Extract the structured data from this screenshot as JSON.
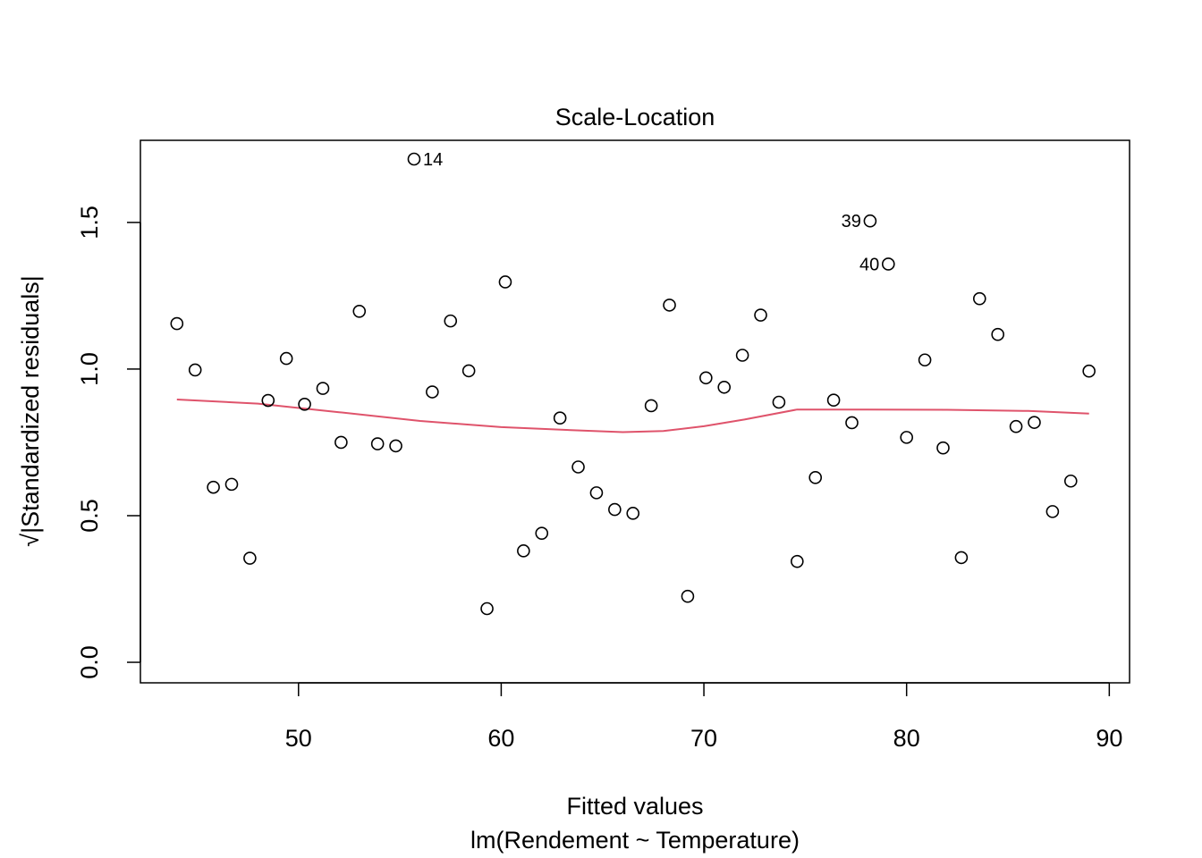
{
  "chart_data": {
    "type": "scatter",
    "title": "Scale-Location",
    "xlabel": "Fitted values",
    "sublabel": "lm(Rendement ~ Temperature)",
    "ylabel": "√|Standardized residuals|",
    "xlim": [
      42.2,
      91.0
    ],
    "ylim": [
      -0.07,
      1.78
    ],
    "x_ticks": [
      50,
      60,
      70,
      80,
      90
    ],
    "x_tick_labels": [
      "50",
      "60",
      "70",
      "80",
      "90"
    ],
    "y_ticks": [
      0.0,
      0.5,
      1.0,
      1.5
    ],
    "y_tick_labels": [
      "0.0",
      "0.5",
      "1.0",
      "1.5"
    ],
    "grid": false,
    "point_color": "#000000",
    "smooth_color": "#DF536B",
    "points": [
      {
        "x": 44.0,
        "y": 1.155
      },
      {
        "x": 44.9,
        "y": 0.997
      },
      {
        "x": 45.8,
        "y": 0.597
      },
      {
        "x": 46.7,
        "y": 0.607
      },
      {
        "x": 47.6,
        "y": 0.355
      },
      {
        "x": 48.5,
        "y": 0.893
      },
      {
        "x": 49.4,
        "y": 1.036
      },
      {
        "x": 50.3,
        "y": 0.88
      },
      {
        "x": 51.2,
        "y": 0.934
      },
      {
        "x": 52.1,
        "y": 0.75
      },
      {
        "x": 53.0,
        "y": 1.197
      },
      {
        "x": 53.9,
        "y": 0.745
      },
      {
        "x": 54.8,
        "y": 0.738
      },
      {
        "x": 55.7,
        "y": 1.716,
        "label": "14"
      },
      {
        "x": 56.6,
        "y": 0.922
      },
      {
        "x": 57.5,
        "y": 1.164
      },
      {
        "x": 58.4,
        "y": 0.994
      },
      {
        "x": 59.3,
        "y": 0.183
      },
      {
        "x": 60.2,
        "y": 1.297
      },
      {
        "x": 61.1,
        "y": 0.38
      },
      {
        "x": 62.0,
        "y": 0.44
      },
      {
        "x": 62.9,
        "y": 0.833
      },
      {
        "x": 63.8,
        "y": 0.666
      },
      {
        "x": 64.7,
        "y": 0.578
      },
      {
        "x": 65.6,
        "y": 0.521
      },
      {
        "x": 66.5,
        "y": 0.508
      },
      {
        "x": 67.4,
        "y": 0.875
      },
      {
        "x": 68.3,
        "y": 1.218
      },
      {
        "x": 69.2,
        "y": 0.225
      },
      {
        "x": 70.1,
        "y": 0.97
      },
      {
        "x": 71.0,
        "y": 0.938
      },
      {
        "x": 71.9,
        "y": 1.047
      },
      {
        "x": 72.8,
        "y": 1.184
      },
      {
        "x": 73.7,
        "y": 0.887
      },
      {
        "x": 74.6,
        "y": 0.344
      },
      {
        "x": 75.5,
        "y": 0.63
      },
      {
        "x": 76.4,
        "y": 0.894
      },
      {
        "x": 77.3,
        "y": 0.817
      },
      {
        "x": 78.2,
        "y": 1.505,
        "label": "39"
      },
      {
        "x": 79.1,
        "y": 1.358,
        "label": "40"
      },
      {
        "x": 80.0,
        "y": 0.767
      },
      {
        "x": 80.9,
        "y": 1.031
      },
      {
        "x": 81.8,
        "y": 0.731
      },
      {
        "x": 82.7,
        "y": 0.357
      },
      {
        "x": 83.6,
        "y": 1.24
      },
      {
        "x": 84.5,
        "y": 1.118
      },
      {
        "x": 85.4,
        "y": 0.804
      },
      {
        "x": 86.3,
        "y": 0.818
      },
      {
        "x": 87.2,
        "y": 0.514
      },
      {
        "x": 88.1,
        "y": 0.618
      },
      {
        "x": 89.0,
        "y": 0.993
      }
    ],
    "smooth": [
      {
        "x": 44.0,
        "y": 0.896
      },
      {
        "x": 48.0,
        "y": 0.882
      },
      {
        "x": 52.0,
        "y": 0.853
      },
      {
        "x": 56.0,
        "y": 0.823
      },
      {
        "x": 60.0,
        "y": 0.802
      },
      {
        "x": 64.0,
        "y": 0.79
      },
      {
        "x": 66.0,
        "y": 0.785
      },
      {
        "x": 68.0,
        "y": 0.789
      },
      {
        "x": 70.0,
        "y": 0.805
      },
      {
        "x": 72.0,
        "y": 0.828
      },
      {
        "x": 74.6,
        "y": 0.862
      },
      {
        "x": 78.0,
        "y": 0.862
      },
      {
        "x": 82.0,
        "y": 0.861
      },
      {
        "x": 86.0,
        "y": 0.857
      },
      {
        "x": 89.0,
        "y": 0.848
      }
    ]
  }
}
